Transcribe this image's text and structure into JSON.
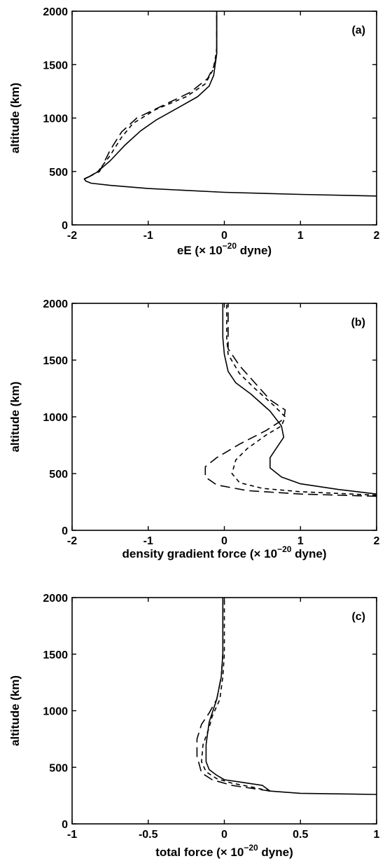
{
  "chart_data": [
    {
      "type": "line",
      "panel_label": "(a)",
      "xlabel_main": "eE (× 10",
      "xlabel_exp": "−20",
      "xlabel_tail": " dyne)",
      "ylabel": "altitude (km)",
      "xlim": [
        -2,
        2
      ],
      "ylim": [
        0,
        2000
      ],
      "xticks": [
        "-2",
        "-1",
        "0",
        "1",
        "2"
      ],
      "yticks": [
        "0",
        "500",
        "1000",
        "1500",
        "2000"
      ],
      "grid": false,
      "series": [
        {
          "style": "solid",
          "points": [
            [
              2,
              270
            ],
            [
              1,
              285
            ],
            [
              0,
              305
            ],
            [
              -1,
              340
            ],
            [
              -1.5,
              370
            ],
            [
              -1.75,
              390
            ],
            [
              -1.82,
              410
            ],
            [
              -1.84,
              430
            ],
            [
              -1.78,
              450
            ],
            [
              -1.68,
              490
            ],
            [
              -1.5,
              600
            ],
            [
              -1.3,
              750
            ],
            [
              -1.1,
              880
            ],
            [
              -0.9,
              980
            ],
            [
              -0.6,
              1100
            ],
            [
              -0.35,
              1200
            ],
            [
              -0.2,
              1300
            ],
            [
              -0.14,
              1400
            ],
            [
              -0.12,
              1500
            ],
            [
              -0.1,
              1600
            ],
            [
              -0.1,
              2000
            ]
          ]
        },
        {
          "style": "dashed",
          "points": [
            [
              -1.84,
              430
            ],
            [
              -1.78,
              450
            ],
            [
              -1.66,
              500
            ],
            [
              -1.5,
              650
            ],
            [
              -1.35,
              820
            ],
            [
              -1.2,
              950
            ],
            [
              -0.9,
              1080
            ],
            [
              -0.5,
              1200
            ],
            [
              -0.25,
              1320
            ],
            [
              -0.15,
              1450
            ],
            [
              -0.12,
              1550
            ],
            [
              -0.1,
              1650
            ],
            [
              -0.1,
              2000
            ]
          ]
        },
        {
          "style": "longdash",
          "points": [
            [
              -1.84,
              430
            ],
            [
              -1.78,
              450
            ],
            [
              -1.64,
              500
            ],
            [
              -1.5,
              700
            ],
            [
              -1.35,
              870
            ],
            [
              -1.15,
              1000
            ],
            [
              -0.8,
              1120
            ],
            [
              -0.45,
              1240
            ],
            [
              -0.22,
              1370
            ],
            [
              -0.14,
              1480
            ],
            [
              -0.1,
              1580
            ],
            [
              -0.1,
              2000
            ]
          ]
        }
      ]
    },
    {
      "type": "line",
      "panel_label": "(b)",
      "xlabel_main": "density gradient force (× 10",
      "xlabel_exp": "−20",
      "xlabel_tail": " dyne)",
      "ylabel": "altitude (km)",
      "xlim": [
        -2,
        2
      ],
      "ylim": [
        0,
        2000
      ],
      "xticks": [
        "-2",
        "-1",
        "0",
        "1",
        "2"
      ],
      "yticks": [
        "0",
        "500",
        "1000",
        "1500",
        "2000"
      ],
      "grid": false,
      "series": [
        {
          "style": "solid",
          "points": [
            [
              2,
              320
            ],
            [
              1.5,
              360
            ],
            [
              1,
              410
            ],
            [
              0.75,
              470
            ],
            [
              0.6,
              550
            ],
            [
              0.6,
              640
            ],
            [
              0.7,
              740
            ],
            [
              0.78,
              820
            ],
            [
              0.75,
              920
            ],
            [
              0.6,
              1050
            ],
            [
              0.35,
              1200
            ],
            [
              0.15,
              1300
            ],
            [
              0.05,
              1400
            ],
            [
              0,
              1550
            ],
            [
              -0.02,
              1700
            ],
            [
              -0.02,
              2000
            ]
          ]
        },
        {
          "style": "dashed",
          "points": [
            [
              2,
              310
            ],
            [
              1,
              340
            ],
            [
              0.5,
              370
            ],
            [
              0.2,
              420
            ],
            [
              0.1,
              500
            ],
            [
              0.15,
              620
            ],
            [
              0.3,
              720
            ],
            [
              0.55,
              840
            ],
            [
              0.75,
              920
            ],
            [
              0.8,
              1000
            ],
            [
              0.65,
              1100
            ],
            [
              0.4,
              1250
            ],
            [
              0.2,
              1380
            ],
            [
              0.05,
              1550
            ],
            [
              0.03,
              1700
            ],
            [
              0.03,
              2000
            ]
          ]
        },
        {
          "style": "longdash",
          "points": [
            [
              2,
              300
            ],
            [
              1,
              320
            ],
            [
              0.3,
              350
            ],
            [
              -0.1,
              400
            ],
            [
              -0.25,
              470
            ],
            [
              -0.25,
              560
            ],
            [
              -0.1,
              640
            ],
            [
              0.2,
              760
            ],
            [
              0.55,
              880
            ],
            [
              0.78,
              980
            ],
            [
              0.8,
              1060
            ],
            [
              0.6,
              1150
            ],
            [
              0.4,
              1300
            ],
            [
              0.2,
              1450
            ],
            [
              0.05,
              1600
            ],
            [
              0.05,
              2000
            ]
          ]
        }
      ]
    },
    {
      "type": "line",
      "panel_label": "(c)",
      "xlabel_main": "total force (× 10",
      "xlabel_exp": "−20",
      "xlabel_tail": " dyne)",
      "ylabel": "altitude (km)",
      "xlim": [
        -1,
        1
      ],
      "ylim": [
        0,
        2000
      ],
      "xticks": [
        "-1",
        "-0.5",
        "0",
        "0.5",
        "1"
      ],
      "yticks": [
        "0",
        "500",
        "1000",
        "1500",
        "2000"
      ],
      "grid": false,
      "series": [
        {
          "style": "solid",
          "points": [
            [
              1,
              260
            ],
            [
              0.5,
              270
            ],
            [
              0.3,
              290
            ],
            [
              0.25,
              340
            ],
            [
              0.1,
              370
            ],
            [
              0,
              390
            ],
            [
              -0.05,
              430
            ],
            [
              -0.1,
              480
            ],
            [
              -0.12,
              550
            ],
            [
              -0.12,
              700
            ],
            [
              -0.1,
              900
            ],
            [
              -0.05,
              1100
            ],
            [
              -0.02,
              1300
            ],
            [
              -0.01,
              1500
            ],
            [
              -0.01,
              2000
            ]
          ]
        },
        {
          "style": "dashed",
          "points": [
            [
              0.3,
              290
            ],
            [
              0.2,
              320
            ],
            [
              0.05,
              360
            ],
            [
              -0.05,
              400
            ],
            [
              -0.12,
              460
            ],
            [
              -0.15,
              550
            ],
            [
              -0.14,
              700
            ],
            [
              -0.1,
              850
            ],
            [
              -0.08,
              950
            ],
            [
              -0.03,
              1100
            ],
            [
              -0.01,
              1300
            ],
            [
              0,
              1500
            ],
            [
              0,
              2000
            ]
          ]
        },
        {
          "style": "longdash",
          "points": [
            [
              0.3,
              290
            ],
            [
              0.2,
              310
            ],
            [
              0.05,
              340
            ],
            [
              -0.08,
              390
            ],
            [
              -0.15,
              450
            ],
            [
              -0.18,
              600
            ],
            [
              -0.18,
              750
            ],
            [
              -0.15,
              880
            ],
            [
              -0.1,
              980
            ],
            [
              -0.05,
              1100
            ],
            [
              -0.02,
              1300
            ],
            [
              -0.01,
              1500
            ],
            [
              -0.01,
              2000
            ]
          ]
        }
      ]
    }
  ]
}
